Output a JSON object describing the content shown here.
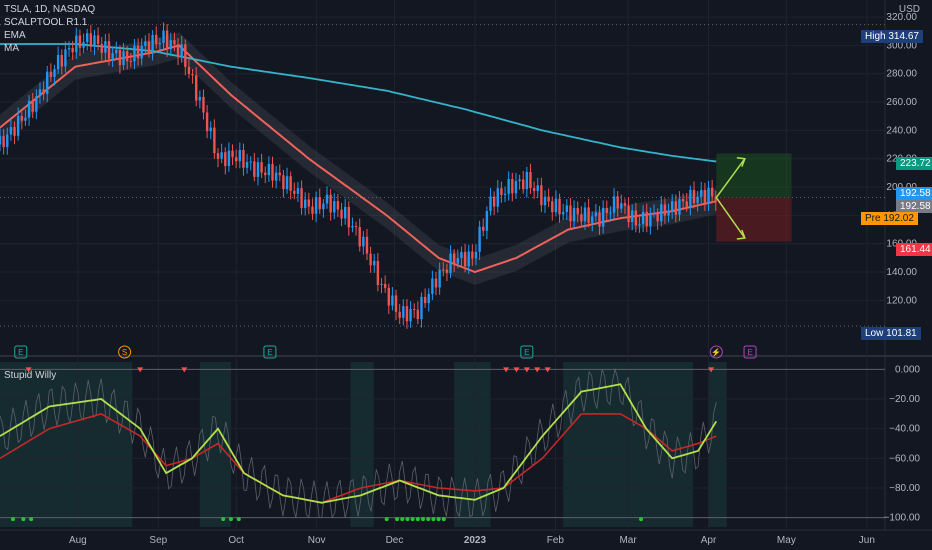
{
  "header": {
    "symbol_line": "TSLA, 1D, NASDAQ",
    "indicators": [
      "SCALPTOOL R1.1",
      "EMA",
      "MA"
    ],
    "currency": "USD"
  },
  "oscillator_label": "Stupid Willy",
  "price_axis": {
    "ticks": [
      320,
      300,
      280,
      260,
      240,
      220,
      200,
      180,
      160,
      140,
      120
    ],
    "ylim": [
      92,
      325
    ]
  },
  "osc_axis": {
    "ticks": [
      "0.000",
      "−20.00",
      "−40.00",
      "−60.00",
      "−80.00",
      "−100.00"
    ],
    "values": [
      0,
      -20,
      -40,
      -60,
      -80,
      -100
    ],
    "ylim": [
      -105,
      5
    ]
  },
  "time_axis": {
    "labels": [
      "Aug",
      "Sep",
      "Oct",
      "Nov",
      "Dec",
      "2023",
      "Feb",
      "Mar",
      "Apr",
      "May",
      "Jun"
    ],
    "label_days": [
      31,
      62,
      92,
      123,
      153,
      184,
      215,
      243,
      274,
      304,
      335
    ]
  },
  "price_tags": {
    "high": {
      "label": "High",
      "value": "314.67"
    },
    "target": "223.72",
    "last": "192.58",
    "last2": "192.58",
    "pre": {
      "label": "Pre",
      "value": "192.02"
    },
    "stop": "161.44",
    "low": {
      "label": "Low",
      "value": "101.81"
    }
  },
  "events": [
    {
      "letter": "E",
      "day": 9,
      "color": "#26a69a"
    },
    {
      "letter": "S",
      "day": 49,
      "color": "#ff9800"
    },
    {
      "letter": "E",
      "day": 105,
      "color": "#26a69a"
    },
    {
      "letter": "E",
      "day": 204,
      "color": "#26a69a"
    },
    {
      "letter": "⚡",
      "day": 277,
      "color": "#ab47bc"
    },
    {
      "letter": "E",
      "day": 290,
      "color": "#ab47bc"
    }
  ],
  "chart_data": {
    "type": "line",
    "title": "TSLA, 1D, NASDAQ",
    "x_unit": "days since Jul 1 2022",
    "xlim": [
      1,
      342
    ],
    "price_series": [
      {
        "name": "close",
        "x": [
          1,
          8,
          15,
          22,
          29,
          36,
          43,
          50,
          57,
          64,
          71,
          78,
          85,
          92,
          99,
          106,
          113,
          120,
          127,
          134,
          141,
          148,
          155,
          162,
          169,
          176,
          183,
          190,
          197,
          204,
          211,
          218,
          225,
          232,
          239,
          246,
          253,
          260,
          267,
          274,
          277
        ],
        "values": [
          230,
          245,
          262,
          285,
          300,
          305,
          295,
          290,
          300,
          305,
          295,
          260,
          220,
          222,
          213,
          210,
          200,
          185,
          190,
          180,
          160,
          130,
          110,
          112,
          135,
          150,
          150,
          190,
          200,
          205,
          190,
          183,
          180,
          178,
          190,
          175,
          180,
          185,
          192,
          195,
          192.58
        ]
      },
      {
        "name": "EMA",
        "x": [
          1,
          30,
          60,
          70,
          90,
          120,
          150,
          170,
          184,
          200,
          220,
          240,
          260,
          277
        ],
        "values": [
          242,
          285,
          295,
          300,
          265,
          220,
          180,
          150,
          140,
          150,
          170,
          178,
          183,
          190
        ]
      },
      {
        "name": "MA",
        "x": [
          1,
          30,
          60,
          90,
          120,
          150,
          180,
          210,
          240,
          260,
          277
        ],
        "values": [
          301,
          301,
          296,
          285,
          277,
          268,
          255,
          240,
          228,
          222,
          218
        ]
      }
    ],
    "levels": {
      "high": 314.67,
      "low": 101.81,
      "target": 223.72,
      "last": 192.58,
      "pre": 192.02,
      "stop": 161.44
    },
    "oscillator": {
      "name": "Stupid Willy",
      "x": [
        1,
        20,
        40,
        55,
        65,
        75,
        85,
        95,
        110,
        125,
        140,
        155,
        170,
        184,
        195,
        210,
        225,
        240,
        250,
        260,
        270,
        277
      ],
      "fast": [
        -45,
        -25,
        -20,
        -40,
        -70,
        -60,
        -40,
        -70,
        -85,
        -90,
        -85,
        -75,
        -85,
        -88,
        -80,
        -45,
        -15,
        -10,
        -40,
        -60,
        -55,
        -35
      ],
      "slow": [
        -60,
        -40,
        -30,
        -45,
        -65,
        -60,
        -50,
        -70,
        -85,
        -90,
        -80,
        -75,
        -80,
        -82,
        -80,
        -60,
        -30,
        -30,
        -40,
        -55,
        -50,
        -45
      ],
      "ylim": [
        -105,
        5
      ]
    }
  },
  "colors": {
    "bull": "#2196f3",
    "bear": "#ef5350",
    "ema": "#f0625a",
    "ma": "#34b3c9",
    "fast": "#b2e04b",
    "slow": "#26c631",
    "slow_red": "#c62828"
  }
}
